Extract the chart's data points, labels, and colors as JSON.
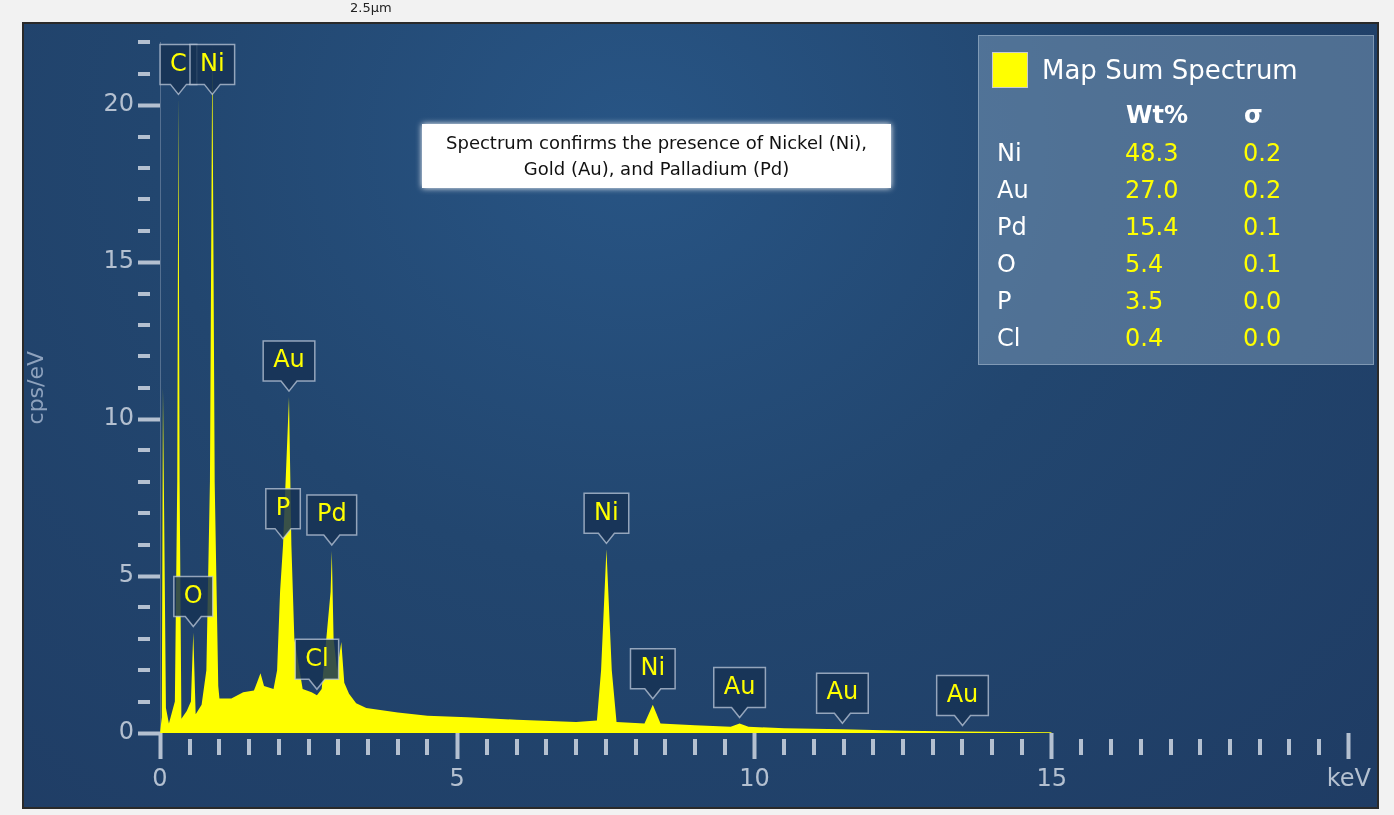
{
  "chart_data": [
    {
      "type": "area",
      "ylabel": "cps/eV",
      "legend": "top right",
      "grid": false,
      "marker": "none",
      "xlim": [
        0,
        20
      ],
      "ylim": [
        0,
        22
      ],
      "xticks": [
        0,
        5,
        10,
        15,
        {
          "value": 20,
          "label": "keV"
        }
      ],
      "yticks": [
        0,
        5,
        10,
        15,
        20
      ],
      "x": [
        0,
        0.03,
        0.05,
        0.1,
        0.15,
        0.25,
        0.29,
        0.31,
        0.33,
        0.36,
        0.45,
        0.52,
        0.56,
        0.6,
        0.7,
        0.78,
        0.84,
        0.88,
        0.92,
        0.98,
        1.0,
        1.2,
        1.4,
        1.58,
        1.65,
        1.69,
        1.75,
        1.91,
        1.97,
        2.02,
        2.07,
        2.17,
        2.21,
        2.26,
        2.4,
        2.55,
        2.64,
        2.72,
        2.87,
        2.89,
        2.92,
        2.98,
        3.05,
        3.1,
        3.18,
        3.3,
        3.47,
        4.0,
        4.5,
        5.17,
        6.0,
        7.0,
        7.35,
        7.42,
        7.51,
        7.6,
        7.68,
        8.15,
        8.29,
        8.42,
        9.0,
        9.6,
        9.75,
        9.9,
        10.5,
        11.48,
        12.5,
        13.5,
        15.0
      ],
      "series": [
        {
          "name": "Map Sum Spectrum",
          "color": "#ffff00",
          "values": [
            0,
            0.5,
            11.0,
            0.8,
            0.3,
            1.0,
            8,
            20.3,
            8,
            0.45,
            0.7,
            1.0,
            3.2,
            0.6,
            0.9,
            2.0,
            8,
            22,
            8,
            1.5,
            1.1,
            1.1,
            1.3,
            1.35,
            1.7,
            1.9,
            1.5,
            1.4,
            2.0,
            4.5,
            6.0,
            10.7,
            6.0,
            3.0,
            1.4,
            1.3,
            1.2,
            1.4,
            4.5,
            5.8,
            3.0,
            2.0,
            2.9,
            1.6,
            1.25,
            0.95,
            0.8,
            0.65,
            0.55,
            0.5,
            0.42,
            0.35,
            0.4,
            2.0,
            5.85,
            2.0,
            0.35,
            0.3,
            0.9,
            0.3,
            0.25,
            0.2,
            0.3,
            0.2,
            0.15,
            0.12,
            0.07,
            0.05,
            0.02
          ]
        }
      ],
      "annotations": [
        "Spectrum confirms the presence of Nickel (Ni), Gold (Au), and Palladium (Pd)",
        "2.5µm",
        {
          "text": "C",
          "x": 0.31,
          "y": 20.3
        },
        {
          "text": "Ni",
          "x": 0.88,
          "y": 22
        },
        {
          "text": "O",
          "x": 0.56,
          "y": 3.2
        },
        {
          "text": "Au",
          "x": 2.17,
          "y": 10.7
        },
        {
          "text": "P",
          "x": 2.07,
          "y": 6.0
        },
        {
          "text": "Pd",
          "x": 2.89,
          "y": 5.8
        },
        {
          "text": "Cl",
          "x": 2.64,
          "y": 1.2
        },
        {
          "text": "Ni",
          "x": 7.51,
          "y": 5.85
        },
        {
          "text": "Ni",
          "x": 8.29,
          "y": 0.9
        },
        {
          "text": "Au",
          "x": 9.75,
          "y": 0.3
        },
        {
          "text": "Au",
          "x": 11.48,
          "y": 0.12
        },
        {
          "text": "Au",
          "x": 13.5,
          "y": 0.05
        }
      ]
    },
    {
      "type": "other",
      "categories": [
        "Ni",
        "Au",
        "Pd",
        "O",
        "P",
        "Cl"
      ],
      "series": [
        {
          "name": "Wt%",
          "values": [
            48.3,
            27.0,
            15.4,
            5.4,
            3.5,
            0.4
          ],
          "value_labels": [
            "48.3",
            "27.0",
            "15.4",
            "5.4",
            "3.5",
            "0.4"
          ]
        },
        {
          "name": "σ",
          "values": [
            0.2,
            0.2,
            0.1,
            0.1,
            0.0,
            0.0
          ],
          "value_labels": [
            "0.2",
            "0.2",
            "0.1",
            "0.1",
            "0.0",
            "0.0"
          ]
        }
      ]
    }
  ]
}
